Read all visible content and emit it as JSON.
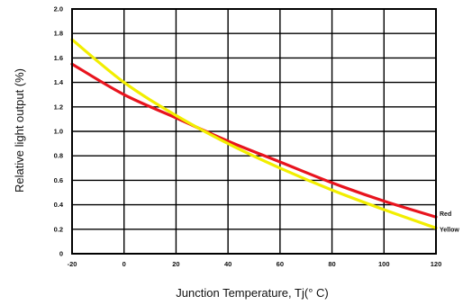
{
  "chart_data": {
    "type": "line",
    "title": "",
    "xlabel": "Junction Temperature, Tj(° C)",
    "ylabel": "Relative light output (%)",
    "xlim": [
      -20,
      120
    ],
    "ylim": [
      0,
      2.0
    ],
    "xticks": [
      -20,
      0,
      20,
      40,
      60,
      80,
      100,
      120
    ],
    "xtick_labels": [
      "-20",
      "0",
      "20",
      "40",
      "60",
      "80",
      "100",
      "120"
    ],
    "yticks": [
      0,
      0.2,
      0.4,
      0.6,
      0.8,
      1.0,
      1.2,
      1.4,
      1.6,
      1.8,
      2.0
    ],
    "ytick_labels": [
      "0",
      "0.2",
      "0.4",
      "0.6",
      "0.8",
      "1.0",
      "1.2",
      "1.4",
      "1.6",
      "1.8",
      "2.0"
    ],
    "grid": true,
    "series": [
      {
        "name": "Red",
        "color": "#e8141e",
        "x": [
          -20,
          0,
          20,
          40,
          60,
          80,
          100,
          120
        ],
        "y": [
          1.55,
          1.3,
          1.11,
          0.92,
          0.75,
          0.58,
          0.43,
          0.3
        ]
      },
      {
        "name": "Yellow",
        "color": "#f2ee00",
        "x": [
          -20,
          0,
          20,
          40,
          60,
          80,
          100,
          120
        ],
        "y": [
          1.75,
          1.4,
          1.13,
          0.9,
          0.7,
          0.52,
          0.36,
          0.21
        ]
      }
    ]
  }
}
